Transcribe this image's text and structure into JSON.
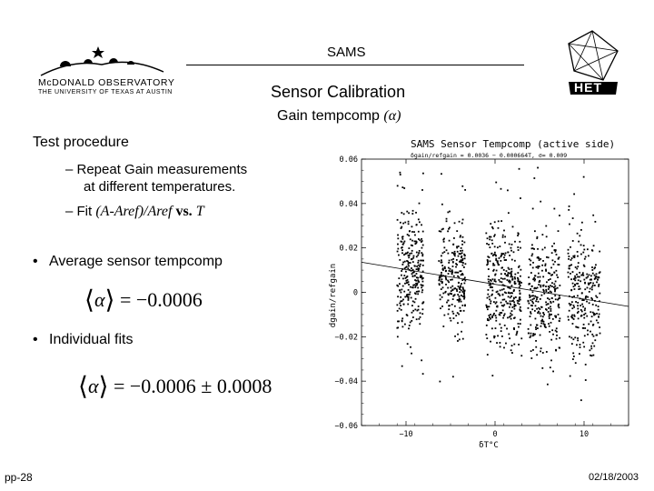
{
  "header": {
    "title": "SAMS",
    "subtitle": "Sensor Calibration",
    "subsubtitle_prefix": "Gain tempcomp",
    "subsubtitle_greek": "(α)"
  },
  "logos": {
    "mcdonald_line1": "McDONALD OBSERVATORY",
    "mcdonald_line2": "THE UNIVERSITY OF TEXAS AT AUSTIN",
    "het": "HET"
  },
  "content": {
    "section_heading": "Test procedure",
    "subitem1_line1": "– Repeat Gain measurements",
    "subitem1_line2": "at different temperatures.",
    "subitem2_dash": "– Fit ",
    "subitem2_formula": "(A-Aref)/Aref",
    "subitem2_vs": " vs. ",
    "subitem2_T": "T",
    "bullet1": "Average sensor tempcomp",
    "bullet2": "Individual fits",
    "formula1_rhs": "= −0.0006",
    "formula2_rhs": "= −0.0006 ± 0.0008",
    "bullet_char": "•"
  },
  "footer": {
    "left": "pp-28",
    "right": "02/18/2003"
  },
  "chart_data": {
    "type": "scatter",
    "title": "SAMS Sensor Tempcomp (active side)",
    "subtitle": "δgain/refgain = 0.0036 − 0.000664T, σ= 0.009",
    "xlabel": "δT°C",
    "ylabel": "dgain/refgain",
    "xlim": [
      -15,
      15
    ],
    "ylim": [
      -0.06,
      0.06
    ],
    "x_ticks": [
      -10,
      0,
      10
    ],
    "x_tick_labels": [
      "−10",
      "0",
      "10"
    ],
    "y_ticks": [
      0.06,
      0.04,
      0.02,
      0,
      -0.02,
      -0.04,
      -0.06
    ],
    "y_tick_labels": [
      "0.06",
      "0.04",
      "0.02",
      "0",
      "−0.02",
      "−0.04",
      "−0.06"
    ],
    "fit_line": {
      "intercept": 0.0036,
      "slope": -0.000664
    },
    "clusters": [
      {
        "x_center": -9.5,
        "x_spread": 1.5,
        "y_spread": 0.014,
        "n": 280
      },
      {
        "x_center": -4.8,
        "x_spread": 1.5,
        "y_spread": 0.013,
        "n": 250
      },
      {
        "x_center": 1.0,
        "x_spread": 2.0,
        "y_spread": 0.014,
        "n": 340
      },
      {
        "x_center": 5.5,
        "x_spread": 1.8,
        "y_spread": 0.015,
        "n": 280
      },
      {
        "x_center": 10.0,
        "x_spread": 1.8,
        "y_spread": 0.016,
        "n": 260
      }
    ],
    "grid": false,
    "legend": "none"
  }
}
